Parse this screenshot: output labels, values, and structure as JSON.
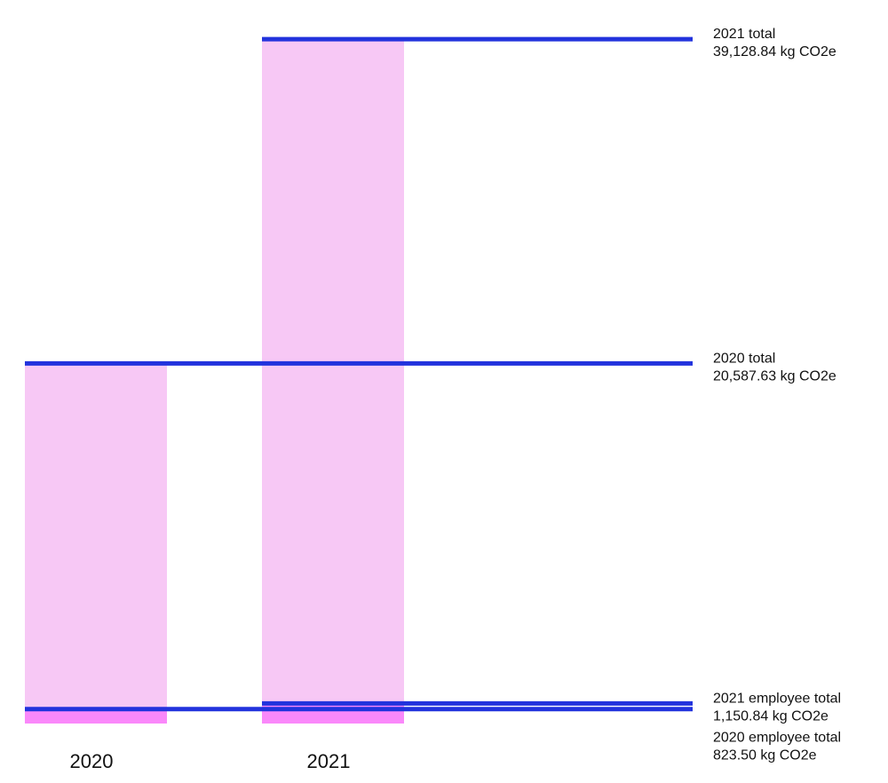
{
  "chart_data": {
    "type": "bar",
    "categories": [
      "2020",
      "2021"
    ],
    "series": [
      {
        "color": "#f7c8f5",
        "values": [
          20587.63,
          39128.84
        ],
        "labels": [
          "2020 total",
          "2021 total"
        ],
        "value_labels": [
          "20,587.63 kg CO2e",
          "39,128.84 kg CO2e"
        ]
      },
      {
        "color": "#fa88fa",
        "values": [
          823.5,
          1150.84
        ],
        "labels": [
          "2020 employee total",
          "2021 employee total"
        ],
        "value_labels": [
          "823.50 kg CO2e",
          "1,150.84 kg CO2e"
        ]
      }
    ],
    "line_color": "#2233dd",
    "ylim": [
      0,
      40000
    ]
  }
}
